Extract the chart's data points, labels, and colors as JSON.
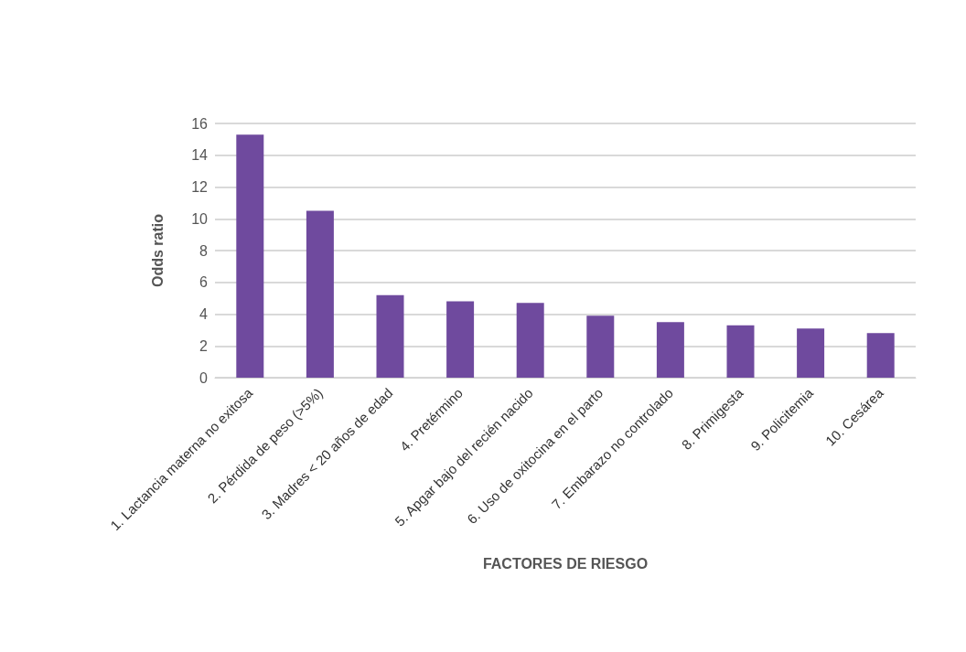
{
  "chart_data": {
    "type": "bar",
    "xlabel": "FACTORES DE RIESGO",
    "ylabel": "Odds ratio",
    "categories": [
      "1. Lactancia materna no exitosa",
      "2. Pérdida de peso (>5%)",
      "3. Madres < 20 años de edad",
      "4. Pretérmino",
      "5. Apgar bajo del recién nacido",
      "6. Uso de oxitocina en el parto",
      "7. Embarazo no controlado",
      "8. Primigesta",
      "9. Policitemia",
      "10. Cesárea"
    ],
    "values": [
      15.3,
      10.5,
      5.2,
      4.8,
      4.7,
      3.9,
      3.5,
      3.3,
      3.1,
      2.8
    ],
    "color": "#6f4a9e",
    "ylim": [
      0,
      16
    ],
    "yticks": [
      0,
      2,
      4,
      6,
      8,
      10,
      12,
      14,
      16
    ],
    "grid": "y"
  }
}
